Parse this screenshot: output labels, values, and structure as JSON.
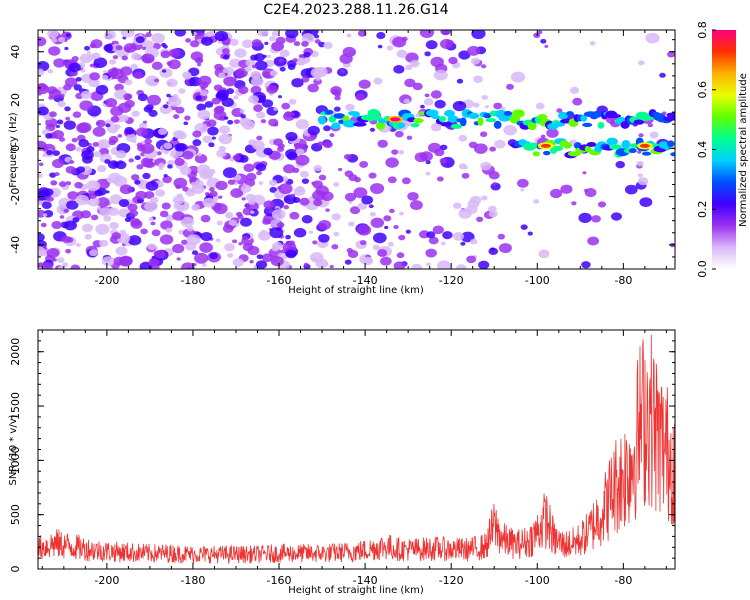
{
  "title": "C2E4.2023.288.11.26.G14",
  "chart_data": [
    {
      "type": "heatmap",
      "xlabel": "Height of straight line (km)",
      "ylabel": "Frequency (Hz)",
      "xlim": [
        -216,
        -68
      ],
      "ylim": [
        -50,
        49
      ],
      "xticks": [
        -200,
        -180,
        -160,
        -140,
        -120,
        -100,
        -80
      ],
      "xtick_labels": [
        "-200",
        "-180",
        "-160",
        "-140",
        "-120",
        "-100",
        "-80"
      ],
      "yticks": [
        40,
        20,
        0,
        -20,
        -40
      ],
      "ytick_labels": [
        "40",
        "20",
        "0",
        "-20",
        "-40"
      ],
      "colorbar": {
        "label": "Normalized spectral amplitude",
        "range": [
          0.0,
          0.8
        ],
        "ticks": [
          0.8,
          0.6,
          0.4,
          0.2,
          0.0
        ],
        "tick_labels": [
          "0.8",
          "0.6",
          "0.4",
          "0.2",
          "0.0"
        ],
        "colors": [
          "#ffffff",
          "#d8b8f8",
          "#9b30f0",
          "#4000ff",
          "#0050ff",
          "#00d0ff",
          "#00ff90",
          "#60ff00",
          "#e8ff00",
          "#ffb000",
          "#ff3000",
          "#ff0080"
        ]
      },
      "features": [
        {
          "name": "band 12 Hz",
          "x_range": [
            -150,
            -68
          ],
          "frequency": 12
        },
        {
          "name": "band 0 Hz",
          "x_range": [
            -105,
            -68
          ],
          "frequency": 0
        },
        {
          "name": "peak",
          "x": -133,
          "frequency": 12,
          "amplitude": 0.8
        },
        {
          "name": "peak",
          "x": -98,
          "frequency": 1,
          "amplitude": 0.75
        },
        {
          "name": "peak",
          "x": -75,
          "frequency": 1,
          "amplitude": 0.75
        }
      ]
    },
    {
      "type": "line",
      "xlabel": "Height of straight line (km)",
      "ylabel": "SNR (10 * v/v)",
      "xlim": [
        -216,
        -68
      ],
      "ylim": [
        0,
        2200
      ],
      "xticks": [
        -200,
        -180,
        -160,
        -140,
        -120,
        -100,
        -80
      ],
      "xtick_labels": [
        "-200",
        "-180",
        "-160",
        "-140",
        "-120",
        "-100",
        "-80"
      ],
      "yticks": [
        2000,
        1500,
        1000,
        500,
        0
      ],
      "ytick_labels": [
        "2000",
        "1500",
        "1000",
        "500",
        "0"
      ],
      "series": [
        {
          "name": "SNR",
          "color": "#ee3333",
          "x": [
            -216,
            -212,
            -208,
            -204,
            -200,
            -195,
            -190,
            -185,
            -180,
            -175,
            -170,
            -165,
            -160,
            -155,
            -150,
            -145,
            -140,
            -137,
            -135,
            -132,
            -128,
            -124,
            -120,
            -116,
            -112,
            -110,
            -108,
            -105,
            -102,
            -100,
            -98,
            -96,
            -94,
            -92,
            -90,
            -88,
            -86,
            -84,
            -82,
            -80,
            -78,
            -76,
            -74,
            -72,
            -70,
            -68
          ],
          "values": [
            210,
            260,
            230,
            200,
            180,
            170,
            160,
            160,
            150,
            150,
            150,
            150,
            160,
            160,
            160,
            170,
            190,
            220,
            230,
            200,
            200,
            210,
            200,
            200,
            230,
            450,
            300,
            250,
            280,
            380,
            520,
            300,
            250,
            260,
            300,
            380,
            520,
            650,
            850,
            950,
            1100,
            1500,
            1600,
            1350,
            1200,
            1100
          ]
        }
      ]
    }
  ]
}
